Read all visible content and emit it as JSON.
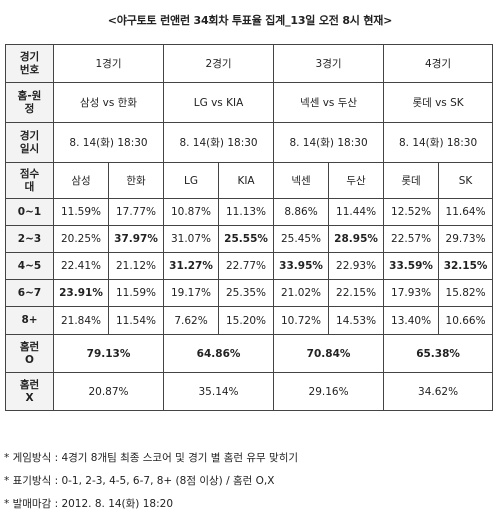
{
  "title": "<야구토토 런앤런 34회차 투표율 집계_13일 오전 8시 현재>",
  "headers": {
    "game_no": "경기\n번호",
    "home_away": "홈-원\n정",
    "game_time": "경기\n일시",
    "score_range": "점수\n대",
    "hr_o": "홈런\nO",
    "hr_x": "홈런\nX"
  },
  "games": [
    {
      "label": "1경기",
      "matchup": "삼성 vs 한화",
      "datetime": "8. 14(화) 18:30",
      "home": "삼성",
      "away": "한화"
    },
    {
      "label": "2경기",
      "matchup": "LG vs KIA",
      "datetime": "8. 14(화) 18:30",
      "home": "LG",
      "away": "KIA"
    },
    {
      "label": "3경기",
      "matchup": "넥센 vs 두산",
      "datetime": "8. 14(화) 18:30",
      "home": "넥센",
      "away": "두산"
    },
    {
      "label": "4경기",
      "matchup": "롯데 vs SK",
      "datetime": "8. 14(화) 18:30",
      "home": "롯데",
      "away": "SK"
    }
  ],
  "score_rows": [
    {
      "range": "0~1",
      "values": [
        "11.59%",
        "17.77%",
        "10.87%",
        "11.13%",
        "8.86%",
        "11.44%",
        "12.52%",
        "11.64%"
      ]
    },
    {
      "range": "2~3",
      "values": [
        "20.25%",
        "37.97%",
        "31.07%",
        "25.55%",
        "25.45%",
        "28.95%",
        "22.57%",
        "29.73%"
      ]
    },
    {
      "range": "4~5",
      "values": [
        "22.41%",
        "21.12%",
        "31.27%",
        "22.77%",
        "33.95%",
        "22.93%",
        "33.59%",
        "32.15%"
      ]
    },
    {
      "range": "6~7",
      "values": [
        "23.91%",
        "11.59%",
        "19.17%",
        "25.35%",
        "21.02%",
        "22.15%",
        "17.93%",
        "15.82%"
      ]
    },
    {
      "range": "8+",
      "values": [
        "21.84%",
        "11.54%",
        "7.62%",
        "15.20%",
        "10.72%",
        "14.53%",
        "13.40%",
        "10.66%"
      ]
    }
  ],
  "homerun_o": [
    "79.13%",
    "64.86%",
    "70.84%",
    "65.38%"
  ],
  "homerun_x": [
    "20.87%",
    "35.14%",
    "29.16%",
    "34.62%"
  ],
  "notes": [
    "* 게임방식 : 4경기 8개팀 최종 스코어 및 경기 별 홈런 유무 맞히기",
    "* 표기방식 : 0-1, 2-3, 4-5, 6-7, 8+ (8점 이상) / 홈런 O,X",
    "* 발매마감 : 2012. 8. 14(화) 18:20"
  ]
}
